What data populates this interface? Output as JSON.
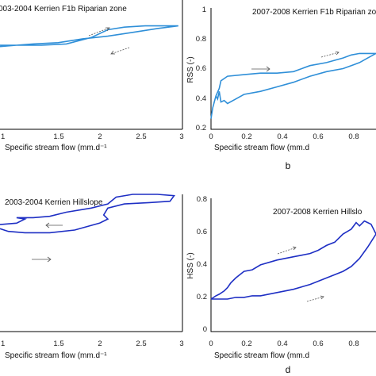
{
  "chart_data": [
    {
      "type": "line",
      "title": "003-2004 Kerrien F1b Riparian zone",
      "xlabel": "Specific stream flow (mm.d⁻¹",
      "ylabel": "",
      "xlim": [
        0.8,
        3.0
      ],
      "ylim": [
        0.0,
        1.0
      ],
      "x_ticks": [
        "1",
        "1.5",
        "2",
        "2.5",
        "3"
      ],
      "y_ticks": [],
      "color": "#2f8fd8",
      "series": [
        {
          "x": [
            0.8,
            1.0,
            1.3,
            1.6,
            1.9,
            2.1,
            2.3,
            2.55,
            2.75,
            2.95,
            2.7,
            2.4,
            2.1,
            1.8,
            1.5,
            1.2,
            1.0,
            0.8
          ],
          "y": [
            0.64,
            0.65,
            0.65,
            0.66,
            0.71,
            0.77,
            0.79,
            0.8,
            0.8,
            0.8,
            0.78,
            0.75,
            0.72,
            0.7,
            0.67,
            0.66,
            0.65,
            0.65
          ]
        }
      ],
      "annotations": [
        "arrow-upper",
        "arrow-lower"
      ]
    },
    {
      "type": "line",
      "title": "2007-2008 Kerrien F1b Riparian zo",
      "xlabel": "Specific stream flow (mm.d",
      "ylabel": "RSS (-)",
      "xlim": [
        0.0,
        1.0
      ],
      "ylim": [
        0.2,
        1.0
      ],
      "x_ticks": [
        "0",
        "0.2",
        "0.4",
        "0.6",
        "0.8"
      ],
      "y_ticks": [
        "0.2",
        "0.4",
        "0.6",
        "0.8",
        "1"
      ],
      "color": "#2f8fd8",
      "panel_label": "b",
      "series": [
        {
          "x": [
            0.0,
            0.01,
            0.03,
            0.05,
            0.06,
            0.1,
            0.2,
            0.3,
            0.4,
            0.5,
            0.6,
            0.7,
            0.8,
            0.85,
            0.9,
            0.95,
            1.0,
            0.95,
            0.9,
            0.85,
            0.8,
            0.7,
            0.6,
            0.5,
            0.4,
            0.3,
            0.2,
            0.15,
            0.1,
            0.08,
            0.06,
            0.05,
            0.04,
            0.03
          ],
          "y": [
            0.27,
            0.34,
            0.42,
            0.47,
            0.52,
            0.55,
            0.56,
            0.57,
            0.57,
            0.58,
            0.62,
            0.64,
            0.67,
            0.69,
            0.7,
            0.7,
            0.7,
            0.67,
            0.64,
            0.62,
            0.6,
            0.58,
            0.55,
            0.51,
            0.48,
            0.45,
            0.43,
            0.4,
            0.37,
            0.39,
            0.38,
            0.45,
            0.4,
            0.42
          ]
        }
      ],
      "annotations": [
        "arrow-upper",
        "arrow-lower"
      ]
    },
    {
      "type": "line",
      "title": "2003-2004 Kerrien Hillslope",
      "xlabel": "Specific stream flow (mm.d⁻¹",
      "ylabel": "",
      "xlim": [
        0.8,
        3.0
      ],
      "ylim": [
        0.0,
        1.0
      ],
      "x_ticks": [
        "1",
        "1.5",
        "2",
        "2.5",
        "3"
      ],
      "y_ticks": [],
      "color": "#1e2fc4",
      "series": [
        {
          "x": [
            0.8,
            1.0,
            1.1,
            1.0,
            1.2,
            1.4,
            1.6,
            1.9,
            2.1,
            2.2,
            2.4,
            2.7,
            2.9,
            2.85,
            2.6,
            2.3,
            2.1,
            2.05,
            2.1,
            2.0,
            1.7,
            1.4,
            1.1,
            0.9,
            0.8
          ],
          "y": [
            0.78,
            0.79,
            0.82,
            0.83,
            0.83,
            0.84,
            0.87,
            0.9,
            0.93,
            0.98,
            1.0,
            1.0,
            0.99,
            0.95,
            0.94,
            0.93,
            0.9,
            0.85,
            0.82,
            0.79,
            0.74,
            0.72,
            0.72,
            0.73,
            0.75
          ]
        }
      ],
      "annotations": [
        "arrow-upper",
        "arrow-lower"
      ]
    },
    {
      "type": "line",
      "title": "2007-2008 Kerrien Hillslo",
      "xlabel": "Specific stream flow (mm.d",
      "ylabel": "HSS (-)",
      "xlim": [
        0.0,
        1.0
      ],
      "ylim": [
        0.0,
        0.8
      ],
      "x_ticks": [
        "0",
        "0.2",
        "0.4",
        "0.6",
        "0.8"
      ],
      "y_ticks": [
        "0",
        "0.2",
        "0.4",
        "0.6",
        "0.8"
      ],
      "color": "#1e2fc4",
      "panel_label": "d",
      "series": [
        {
          "x": [
            0.0,
            0.05,
            0.1,
            0.15,
            0.2,
            0.25,
            0.3,
            0.4,
            0.5,
            0.6,
            0.7,
            0.8,
            0.85,
            0.9,
            0.95,
            1.0,
            0.97,
            0.93,
            0.9,
            0.88,
            0.85,
            0.8,
            0.75,
            0.7,
            0.65,
            0.6,
            0.55,
            0.5,
            0.4,
            0.3,
            0.25,
            0.2,
            0.15,
            0.12,
            0.1,
            0.08,
            0.05,
            0.03,
            0.0
          ],
          "y": [
            0.2,
            0.2,
            0.2,
            0.21,
            0.21,
            0.22,
            0.22,
            0.24,
            0.26,
            0.29,
            0.33,
            0.37,
            0.4,
            0.45,
            0.52,
            0.6,
            0.66,
            0.68,
            0.65,
            0.67,
            0.63,
            0.6,
            0.55,
            0.53,
            0.5,
            0.48,
            0.47,
            0.46,
            0.44,
            0.41,
            0.38,
            0.37,
            0.33,
            0.3,
            0.27,
            0.25,
            0.23,
            0.22,
            0.2
          ]
        }
      ],
      "annotations": [
        "arrow-upper",
        "arrow-lower"
      ]
    }
  ]
}
